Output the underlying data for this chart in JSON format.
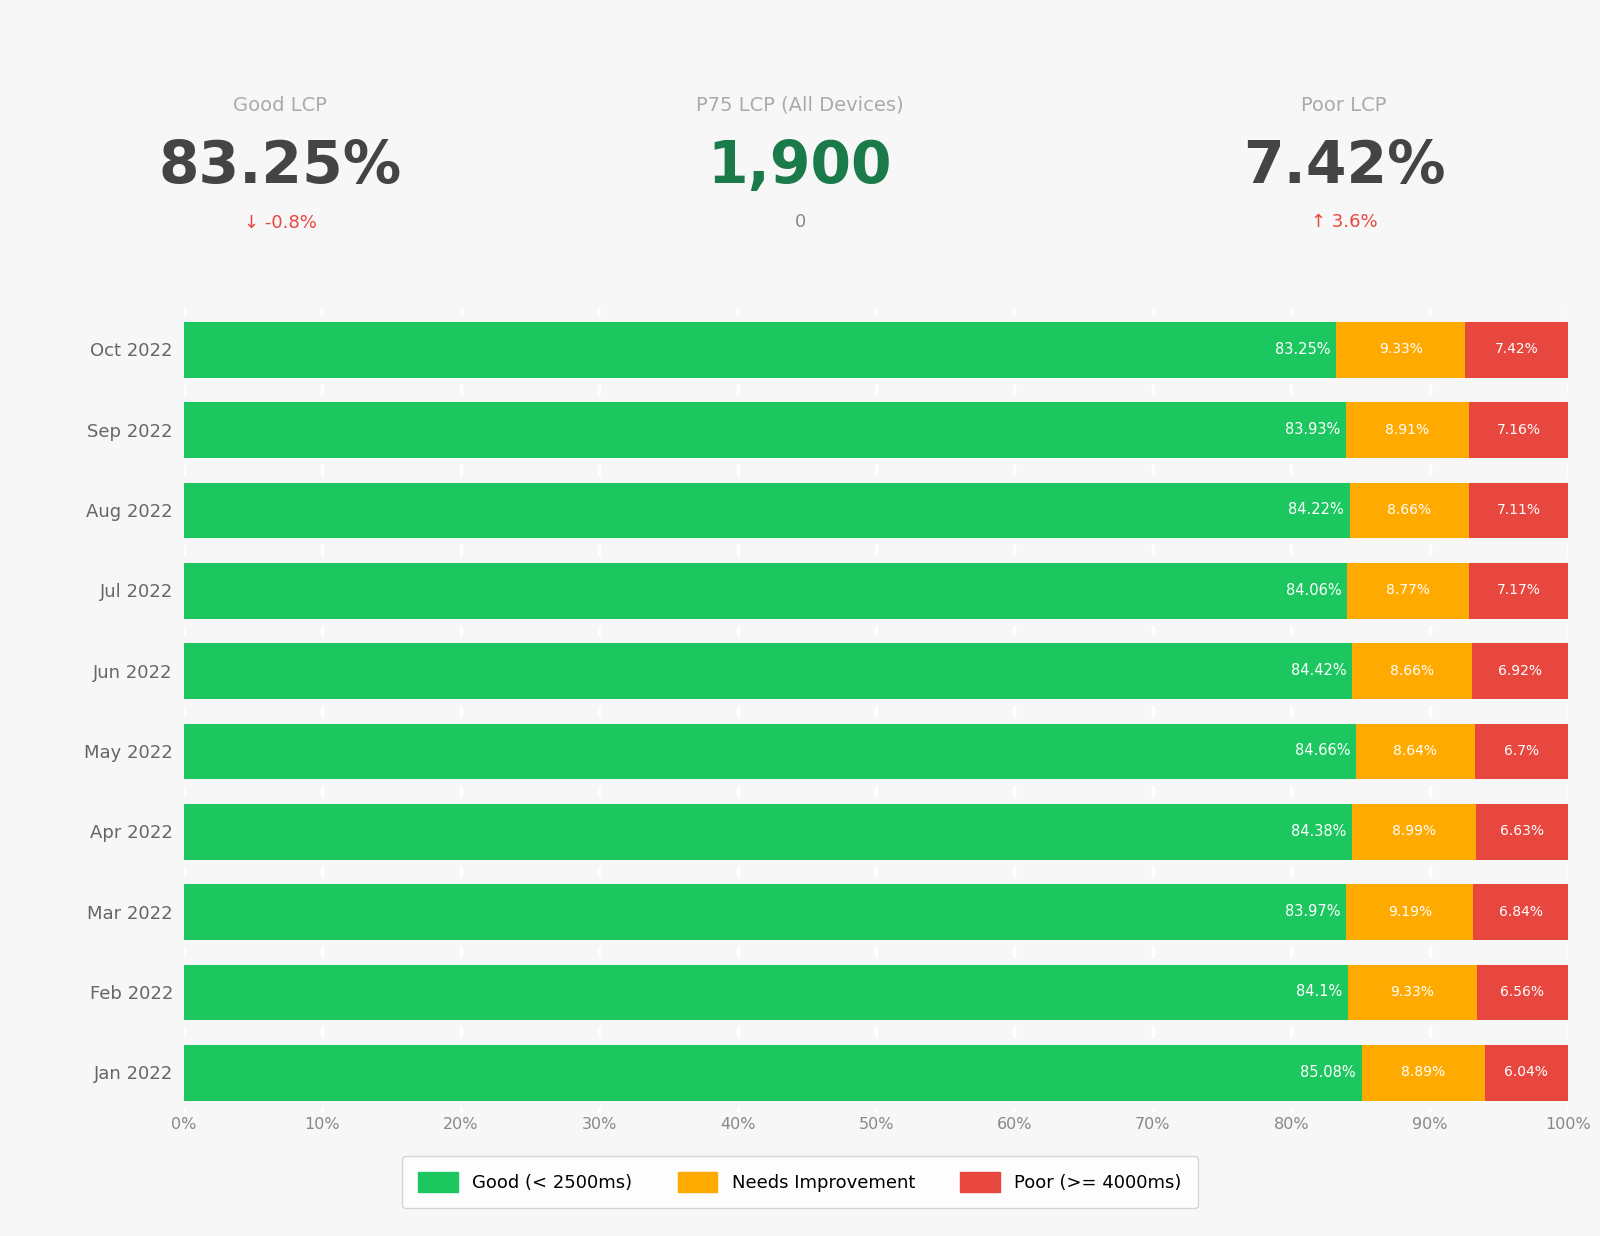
{
  "months": [
    "Oct 2022",
    "Sep 2022",
    "Aug 2022",
    "Jul 2022",
    "Jun 2022",
    "May 2022",
    "Apr 2022",
    "Mar 2022",
    "Feb 2022",
    "Jan 2022"
  ],
  "good": [
    83.25,
    83.93,
    84.22,
    84.06,
    84.42,
    84.66,
    84.38,
    83.97,
    84.1,
    85.08
  ],
  "needs_improvement": [
    9.33,
    8.91,
    8.66,
    8.77,
    8.66,
    8.64,
    8.99,
    9.19,
    9.33,
    8.89
  ],
  "poor": [
    7.42,
    7.16,
    7.11,
    7.17,
    6.92,
    6.7,
    6.63,
    6.84,
    6.56,
    6.04
  ],
  "good_color": "#1cc760",
  "needs_color": "#ffaa00",
  "poor_color": "#e8473f",
  "background_color": "#f7f7f7",
  "grid_color": "#ffffff",
  "text_color_dark": "#444444",
  "text_color_grey": "#999999",
  "text_color_green": "#1a7a4a",
  "text_color_red": "#e8473f",
  "header_good_lcp_label": "Good LCP",
  "header_good_lcp_value": "83.25%",
  "header_good_lcp_change": "↓ -0.8%",
  "header_p75_label": "P75 LCP (All Devices)",
  "header_p75_value": "1,900",
  "header_p75_change": "0",
  "header_poor_lcp_label": "Poor LCP",
  "header_poor_lcp_value": "7.42%",
  "header_poor_lcp_change": "↑ 3.6%",
  "legend_good": "Good (< 2500ms)",
  "legend_needs": "Needs Improvement",
  "legend_poor": "Poor (>= 4000ms)"
}
